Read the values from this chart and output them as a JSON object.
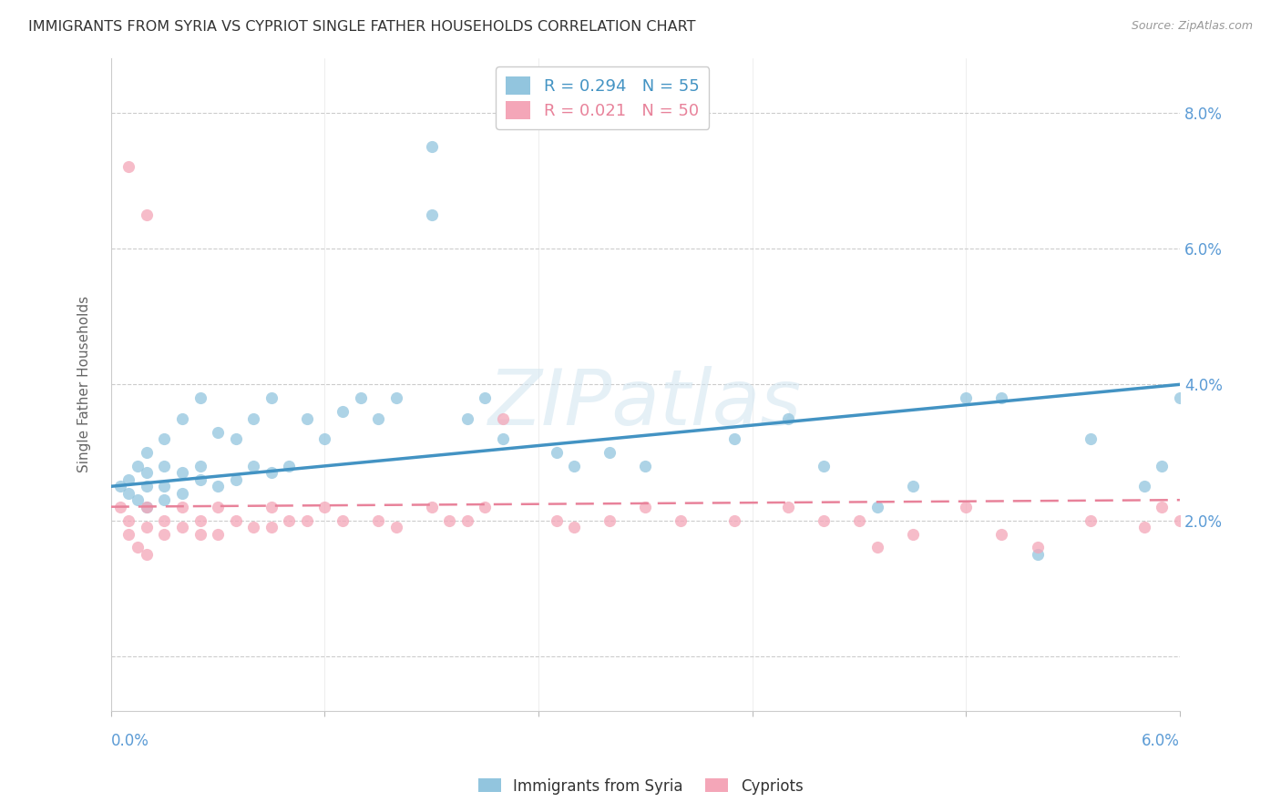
{
  "title": "IMMIGRANTS FROM SYRIA VS CYPRIOT SINGLE FATHER HOUSEHOLDS CORRELATION CHART",
  "source": "Source: ZipAtlas.com",
  "ylabel": "Single Father Households",
  "legend_entry1": "R = 0.294   N = 55",
  "legend_entry2": "R = 0.021   N = 50",
  "legend_label1": "Immigrants from Syria",
  "legend_label2": "Cypriots",
  "blue_color": "#92c5de",
  "pink_color": "#f4a6b8",
  "blue_line_color": "#4393c3",
  "pink_line_color": "#e8829a",
  "tick_color": "#5b9bd5",
  "ylabel_color": "#666666",
  "title_color": "#333333",
  "source_color": "#999999",
  "x_lim": [
    0.0,
    0.06
  ],
  "y_lim": [
    -0.008,
    0.088
  ],
  "y_ticks": [
    0.0,
    0.02,
    0.04,
    0.06,
    0.08
  ],
  "y_tick_labels": [
    "",
    "2.0%",
    "4.0%",
    "6.0%",
    "8.0%"
  ],
  "x_ticks": [
    0.0,
    0.012,
    0.024,
    0.036,
    0.048,
    0.06
  ],
  "watermark_text": "ZIPatlas",
  "blue_x": [
    0.0005,
    0.001,
    0.001,
    0.0015,
    0.0015,
    0.002,
    0.002,
    0.002,
    0.002,
    0.003,
    0.003,
    0.003,
    0.003,
    0.004,
    0.004,
    0.004,
    0.005,
    0.005,
    0.005,
    0.006,
    0.006,
    0.007,
    0.007,
    0.008,
    0.008,
    0.009,
    0.009,
    0.01,
    0.011,
    0.012,
    0.013,
    0.014,
    0.015,
    0.016,
    0.018,
    0.018,
    0.02,
    0.021,
    0.022,
    0.025,
    0.026,
    0.028,
    0.03,
    0.035,
    0.038,
    0.04,
    0.043,
    0.045,
    0.048,
    0.05,
    0.052,
    0.055,
    0.058,
    0.059,
    0.06
  ],
  "blue_y": [
    0.025,
    0.024,
    0.026,
    0.023,
    0.028,
    0.022,
    0.025,
    0.027,
    0.03,
    0.023,
    0.025,
    0.028,
    0.032,
    0.024,
    0.027,
    0.035,
    0.026,
    0.028,
    0.038,
    0.025,
    0.033,
    0.026,
    0.032,
    0.028,
    0.035,
    0.027,
    0.038,
    0.028,
    0.035,
    0.032,
    0.036,
    0.038,
    0.035,
    0.038,
    0.075,
    0.065,
    0.035,
    0.038,
    0.032,
    0.03,
    0.028,
    0.03,
    0.028,
    0.032,
    0.035,
    0.028,
    0.022,
    0.025,
    0.038,
    0.038,
    0.015,
    0.032,
    0.025,
    0.028,
    0.038
  ],
  "pink_x": [
    0.0005,
    0.001,
    0.001,
    0.0015,
    0.002,
    0.002,
    0.002,
    0.003,
    0.003,
    0.004,
    0.004,
    0.005,
    0.005,
    0.006,
    0.006,
    0.007,
    0.008,
    0.009,
    0.009,
    0.01,
    0.011,
    0.012,
    0.013,
    0.015,
    0.016,
    0.018,
    0.019,
    0.02,
    0.021,
    0.022,
    0.025,
    0.026,
    0.028,
    0.03,
    0.032,
    0.035,
    0.038,
    0.04,
    0.042,
    0.043,
    0.045,
    0.048,
    0.05,
    0.052,
    0.055,
    0.058,
    0.059,
    0.06,
    0.001,
    0.002
  ],
  "pink_y": [
    0.022,
    0.02,
    0.018,
    0.016,
    0.015,
    0.019,
    0.022,
    0.018,
    0.02,
    0.019,
    0.022,
    0.018,
    0.02,
    0.018,
    0.022,
    0.02,
    0.019,
    0.019,
    0.022,
    0.02,
    0.02,
    0.022,
    0.02,
    0.02,
    0.019,
    0.022,
    0.02,
    0.02,
    0.022,
    0.035,
    0.02,
    0.019,
    0.02,
    0.022,
    0.02,
    0.02,
    0.022,
    0.02,
    0.02,
    0.016,
    0.018,
    0.022,
    0.018,
    0.016,
    0.02,
    0.019,
    0.022,
    0.02,
    0.072,
    0.065
  ],
  "blue_line_x0": 0.0,
  "blue_line_x1": 0.06,
  "blue_line_y0": 0.025,
  "blue_line_y1": 0.04,
  "pink_line_x0": 0.0,
  "pink_line_x1": 0.06,
  "pink_line_y0": 0.022,
  "pink_line_y1": 0.023
}
